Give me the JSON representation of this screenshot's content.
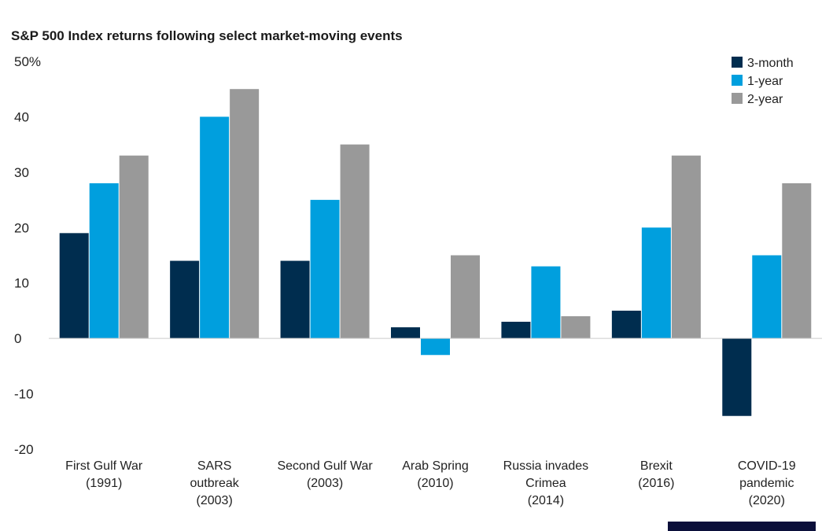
{
  "chart_data": {
    "type": "bar",
    "title": "S&P 500 Index returns following select market-moving events",
    "xlabel": "",
    "ylabel": "",
    "ylim": [
      -20,
      50
    ],
    "yticks": [
      "50%",
      "40",
      "30",
      "20",
      "10",
      "0",
      "-10",
      "-20"
    ],
    "categories": [
      [
        "First Gulf War",
        "(1991)"
      ],
      [
        "SARS",
        "outbreak",
        "(2003)"
      ],
      [
        "Second Gulf War",
        "(2003)"
      ],
      [
        "Arab Spring",
        "(2010)"
      ],
      [
        "Russia invades",
        "Crimea",
        "(2014)"
      ],
      [
        "Brexit",
        "(2016)"
      ],
      [
        "COVID-19",
        "pandemic",
        "(2020)"
      ]
    ],
    "series": [
      {
        "name": "3-month",
        "color": "#002d4f",
        "values": [
          19,
          14,
          14,
          2,
          3,
          5,
          -14
        ]
      },
      {
        "name": "1-year",
        "color": "#009fde",
        "values": [
          28,
          40,
          25,
          -3,
          13,
          20,
          15
        ]
      },
      {
        "name": "2-year",
        "color": "#999999",
        "values": [
          33,
          45,
          35,
          15,
          4,
          33,
          28
        ]
      }
    ],
    "grid": false,
    "legend_position": "top-right"
  }
}
